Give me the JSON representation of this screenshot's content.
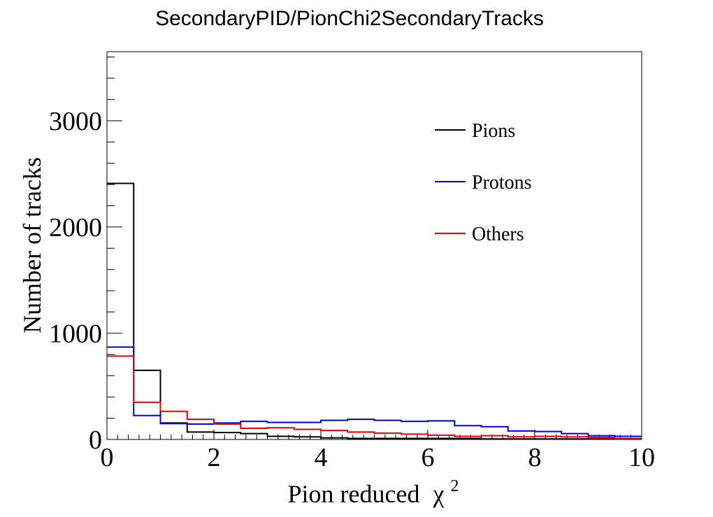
{
  "chart_data": {
    "type": "histogram",
    "title": "SecondaryPID/PionChi2SecondaryTracks",
    "xlabel": "Pion reduced",
    "xlabel_symbol": "χ",
    "xlabel_sup": "2",
    "ylabel": "Number of tracks",
    "xlim": [
      0,
      10
    ],
    "ylim": [
      0,
      3650
    ],
    "x_ticks": [
      "0",
      "2",
      "4",
      "6",
      "8",
      "10"
    ],
    "y_ticks": [
      "0",
      "1000",
      "2000",
      "3000"
    ],
    "bin_edges": [
      0,
      0.5,
      1,
      1.5,
      2,
      2.5,
      3,
      3.5,
      4,
      4.5,
      5,
      5.5,
      6,
      6.5,
      7,
      7.5,
      8,
      8.5,
      9,
      9.5,
      10
    ],
    "series": [
      {
        "name": "Pions",
        "color": "#000000",
        "values": [
          2410,
          650,
          155,
          70,
          65,
          55,
          30,
          25,
          15,
          10,
          10,
          10,
          10,
          10,
          5,
          5,
          5,
          5,
          5,
          5
        ]
      },
      {
        "name": "Protons",
        "color": "#0000ee",
        "values": [
          870,
          225,
          150,
          145,
          155,
          170,
          160,
          160,
          180,
          190,
          180,
          170,
          175,
          130,
          120,
          80,
          75,
          55,
          35,
          30
        ]
      },
      {
        "name": "Others",
        "color": "#ee0000",
        "values": [
          785,
          350,
          265,
          190,
          145,
          105,
          110,
          95,
          85,
          70,
          60,
          50,
          40,
          30,
          35,
          25,
          30,
          25,
          20,
          10
        ]
      }
    ],
    "legend_position": "top-right",
    "grid": false
  }
}
